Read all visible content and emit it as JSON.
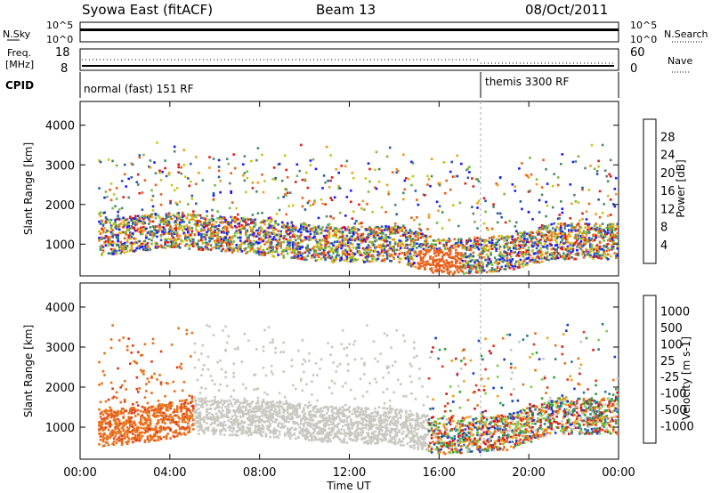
{
  "header": {
    "station": "Syowa East (fitACF)",
    "beam": "Beam 13",
    "date": "08/Oct/2011"
  },
  "top_panels": {
    "nsky_label": "N.Sky",
    "nsky_top": "10^5",
    "nsky_bottom": "10^0",
    "nsearch_label": "N.Search",
    "nsearch_top": "10^5",
    "nsearch_bottom": "10^0",
    "freq_label_1": "Freq.",
    "freq_label_2": "[MHz]",
    "freq_top": "18",
    "freq_bottom": "8",
    "nave_label": "Nave",
    "nave_top": "60",
    "nave_bottom": "0",
    "cpid_label": "CPID",
    "cpid_mode_1": "normal (fast) 151 RF",
    "cpid_mode_2": "themis 3300 RF"
  },
  "chart_data": [
    {
      "type": "heatmap",
      "title": "",
      "ylabel": "Slant Range [km]",
      "xlabel": "",
      "x_ticks": [
        "00:00",
        "04:00",
        "08:00",
        "12:00",
        "16:00",
        "20:00",
        "00:00"
      ],
      "xlim_hours": [
        0,
        24
      ],
      "y_ticks": [
        "1000",
        "2000",
        "3000",
        "4000"
      ],
      "ylim": [
        200,
        4600
      ],
      "colorbar": {
        "label": "Power [dB]",
        "ticks": [
          "4",
          "8",
          "12",
          "16",
          "20",
          "24",
          "28"
        ],
        "colors": [
          "#1a1aff",
          "#2a5aa8",
          "#4a8a6a",
          "#7ab840",
          "#c8c41a",
          "#f09a1a",
          "#e8601a",
          "#e01a1a"
        ]
      },
      "series": [
        {
          "time_hours": [
            1,
            4,
            8,
            11,
            14,
            16,
            19,
            21
          ],
          "range_km": [
            1200,
            1400,
            1200,
            1000,
            1050,
            700,
            800,
            1100
          ]
        }
      ]
    },
    {
      "type": "heatmap",
      "title": "",
      "ylabel": "Slant Range [km]",
      "xlabel": "Time UT",
      "x_ticks": [
        "00:00",
        "04:00",
        "08:00",
        "12:00",
        "16:00",
        "20:00",
        "00:00"
      ],
      "xlim_hours": [
        0,
        24
      ],
      "y_ticks": [
        "1000",
        "2000",
        "3000",
        "4000"
      ],
      "ylim": [
        200,
        4600
      ],
      "colorbar": {
        "label": "Velocity [m s-1]",
        "ticks": [
          "1000",
          "500",
          "100",
          "25",
          "-25",
          "-100",
          "-500",
          "-1000"
        ],
        "colors": [
          "#1a3ac8",
          "#2a7a8a",
          "#3aa03a",
          "#7ad040",
          "#c8c8c0",
          "#f0a01a",
          "#e8701a",
          "#e03a1a",
          "#d01a1a"
        ]
      },
      "series": [
        {
          "time_hours": [
            1,
            3,
            5,
            8,
            11,
            14,
            16,
            19,
            21
          ],
          "range_km": [
            1000,
            1100,
            1300,
            1250,
            1100,
            1050,
            800,
            900,
            1300
          ]
        }
      ]
    }
  ]
}
